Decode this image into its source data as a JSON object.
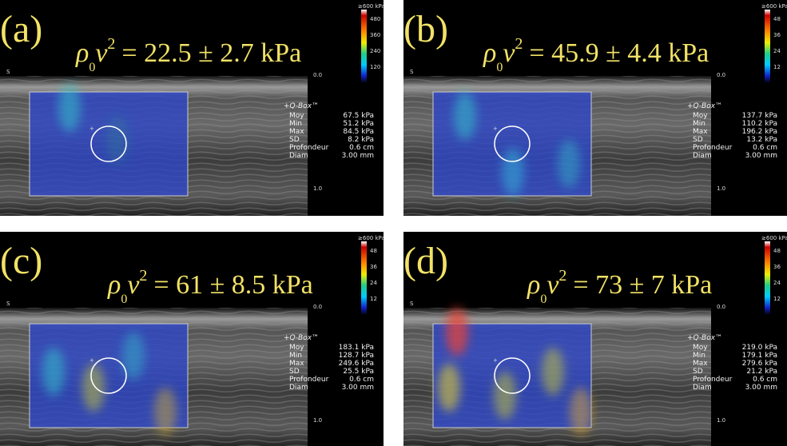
{
  "panels": [
    {
      "label": "(a)",
      "formula": {
        "rho": "ρ",
        "sub": "0",
        "v": "v",
        "sup": "2",
        "rhs": "= 22.5 ± 2.7 kPa"
      },
      "scale_title": "≥600 kPa",
      "scale_ticks": [
        "480",
        "360",
        "240",
        "120"
      ],
      "depth_ticks": [
        "0.0",
        "1.0"
      ],
      "probe": "S",
      "qbox": {
        "title": "+Q-Box™",
        "rows": [
          [
            "Moy",
            "67.5 kPa"
          ],
          [
            "Min",
            "51.2 kPa"
          ],
          [
            "Max",
            "84.5 kPa"
          ],
          [
            "SD",
            "8.2 kPa"
          ],
          [
            "Profondeur",
            "0.6 cm"
          ],
          [
            "Diam",
            "3.00 mm"
          ]
        ]
      }
    },
    {
      "label": "(b)",
      "formula": {
        "rho": "ρ",
        "sub": "0",
        "v": "v",
        "sup": "2",
        "rhs": "= 45.9 ± 4.4 kPa"
      },
      "scale_title": "≥600 kPa",
      "scale_ticks": [
        "48",
        "36",
        "24",
        "12"
      ],
      "depth_ticks": [
        "0.0",
        "1.0"
      ],
      "probe": "S",
      "qbox": {
        "title": "+Q-Box™",
        "rows": [
          [
            "Moy",
            "137.7 kPa"
          ],
          [
            "Min",
            "110.2 kPa"
          ],
          [
            "Max",
            "196.2 kPa"
          ],
          [
            "SD",
            "13.2 kPa"
          ],
          [
            "Profondeur",
            "0.6 cm"
          ],
          [
            "Diam",
            "3.00 mm"
          ]
        ]
      }
    },
    {
      "label": "(c)",
      "formula": {
        "rho": "ρ",
        "sub": "0",
        "v": "v",
        "sup": "2",
        "rhs": "= 61 ± 8.5 kPa"
      },
      "scale_title": "≥600 kPa",
      "scale_ticks": [
        "48",
        "36",
        "24",
        "12"
      ],
      "depth_ticks": [
        "0.0",
        "1.0"
      ],
      "probe": "S",
      "qbox": {
        "title": "+Q-Box™",
        "rows": [
          [
            "Moy",
            "183.1 kPa"
          ],
          [
            "Min",
            "128.7 kPa"
          ],
          [
            "Max",
            "249.6 kPa"
          ],
          [
            "SD",
            "25.5 kPa"
          ],
          [
            "Profondeur",
            "0.6 cm"
          ],
          [
            "Diam",
            "3.00 mm"
          ]
        ]
      }
    },
    {
      "label": "(d)",
      "formula": {
        "rho": "ρ",
        "sub": "0",
        "v": "v",
        "sup": "2",
        "rhs": "= 73 ± 7 kPa"
      },
      "scale_title": "≥600 kPa",
      "scale_ticks": [
        "48",
        "36",
        "24",
        "12"
      ],
      "depth_ticks": [
        "0.0",
        "1.0"
      ],
      "probe": "S",
      "qbox": {
        "title": "+Q-Box™",
        "rows": [
          [
            "Moy",
            "219.0 kPa"
          ],
          [
            "Min",
            "179.1 kPa"
          ],
          [
            "Max",
            "279.6 kPa"
          ],
          [
            "SD",
            "21.2 kPa"
          ],
          [
            "Profondeur",
            "0.6 cm"
          ],
          [
            "Diam",
            "3.00 mm"
          ]
        ]
      }
    }
  ]
}
